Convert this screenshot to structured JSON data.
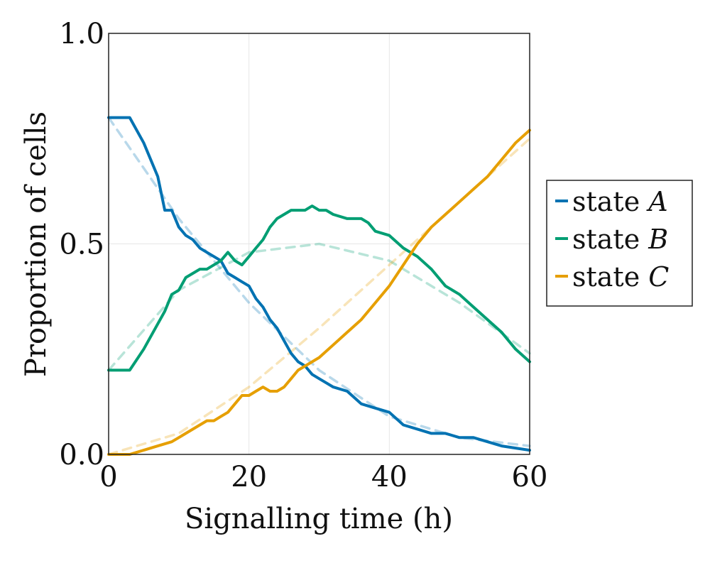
{
  "chart_data": {
    "type": "line",
    "xlabel": "Signalling time (h)",
    "ylabel": "Proportion of cells",
    "xlim": [
      0,
      60
    ],
    "ylim": [
      0,
      1
    ],
    "x_ticks": [
      "0",
      "20",
      "40",
      "60"
    ],
    "y_ticks": [
      "0.0",
      "0.5",
      "1.0"
    ],
    "grid": true,
    "legend_position": "right, outside plot",
    "series": [
      {
        "name": "state",
        "name_var": "A",
        "color": "#0072b2",
        "style": "solid",
        "x": [
          0,
          3,
          5,
          7,
          8,
          9,
          10,
          11,
          12,
          13,
          14,
          15,
          16,
          17,
          18,
          19,
          20,
          21,
          22,
          23,
          24,
          25,
          26,
          27,
          28,
          29,
          30,
          31,
          32,
          34,
          36,
          38,
          40,
          42,
          44,
          46,
          48,
          50,
          52,
          54,
          56,
          58,
          60
        ],
        "values": [
          0.8,
          0.8,
          0.74,
          0.66,
          0.58,
          0.58,
          0.54,
          0.52,
          0.51,
          0.49,
          0.48,
          0.47,
          0.46,
          0.43,
          0.42,
          0.41,
          0.4,
          0.37,
          0.35,
          0.32,
          0.3,
          0.27,
          0.24,
          0.22,
          0.21,
          0.19,
          0.18,
          0.17,
          0.16,
          0.15,
          0.12,
          0.11,
          0.1,
          0.07,
          0.06,
          0.05,
          0.05,
          0.04,
          0.04,
          0.03,
          0.02,
          0.015,
          0.01
        ]
      },
      {
        "name": "state",
        "name_var": "B",
        "color": "#009e73",
        "style": "solid",
        "x": [
          0,
          3,
          5,
          7,
          8,
          9,
          10,
          11,
          12,
          13,
          14,
          15,
          16,
          17,
          18,
          19,
          20,
          21,
          22,
          23,
          24,
          25,
          26,
          27,
          28,
          29,
          30,
          31,
          32,
          34,
          36,
          37,
          38,
          40,
          42,
          44,
          46,
          48,
          50,
          52,
          54,
          56,
          58,
          60
        ],
        "values": [
          0.2,
          0.2,
          0.25,
          0.31,
          0.34,
          0.38,
          0.39,
          0.42,
          0.43,
          0.44,
          0.44,
          0.45,
          0.46,
          0.48,
          0.46,
          0.45,
          0.47,
          0.49,
          0.51,
          0.54,
          0.56,
          0.57,
          0.58,
          0.58,
          0.58,
          0.59,
          0.58,
          0.58,
          0.57,
          0.56,
          0.56,
          0.55,
          0.53,
          0.52,
          0.49,
          0.47,
          0.44,
          0.4,
          0.38,
          0.35,
          0.32,
          0.29,
          0.25,
          0.22
        ]
      },
      {
        "name": "state",
        "name_var": "C",
        "color": "#e69f00",
        "style": "solid",
        "x": [
          0,
          3,
          5,
          7,
          9,
          11,
          13,
          14,
          15,
          16,
          17,
          18,
          19,
          20,
          21,
          22,
          23,
          24,
          25,
          26,
          27,
          28,
          30,
          32,
          34,
          36,
          38,
          40,
          42,
          44,
          46,
          48,
          50,
          52,
          54,
          56,
          58,
          60
        ],
        "values": [
          0.0,
          0.0,
          0.01,
          0.02,
          0.03,
          0.05,
          0.07,
          0.08,
          0.08,
          0.09,
          0.1,
          0.12,
          0.14,
          0.14,
          0.15,
          0.16,
          0.15,
          0.15,
          0.16,
          0.18,
          0.2,
          0.21,
          0.23,
          0.26,
          0.29,
          0.32,
          0.36,
          0.4,
          0.45,
          0.5,
          0.54,
          0.57,
          0.6,
          0.63,
          0.66,
          0.7,
          0.74,
          0.77
        ]
      },
      {
        "color": "#0072b2",
        "style": "dashed-faded",
        "x": [
          0,
          10,
          20,
          30,
          40,
          50,
          60
        ],
        "values": [
          0.8,
          0.56,
          0.36,
          0.2,
          0.09,
          0.04,
          0.02
        ]
      },
      {
        "color": "#009e73",
        "style": "dashed-faded",
        "x": [
          0,
          10,
          20,
          30,
          40,
          50,
          60
        ],
        "values": [
          0.2,
          0.39,
          0.48,
          0.5,
          0.46,
          0.36,
          0.24
        ]
      },
      {
        "color": "#e69f00",
        "style": "dashed-faded",
        "x": [
          0,
          10,
          20,
          30,
          40,
          50,
          60
        ],
        "values": [
          0.0,
          0.05,
          0.16,
          0.3,
          0.45,
          0.6,
          0.75
        ]
      }
    ]
  }
}
